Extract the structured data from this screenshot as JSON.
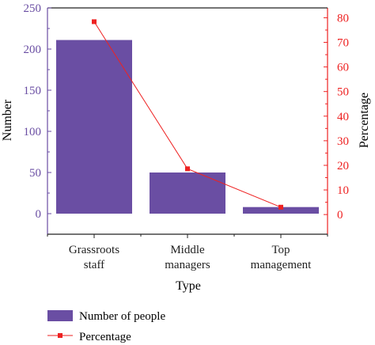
{
  "colors": {
    "bar": "#6a4ea3",
    "line": "#ee2222",
    "axis_left": "#6a4ea3",
    "axis_right": "#ee2222",
    "text": "#222222"
  },
  "chart_data": {
    "type": "bar",
    "categories": [
      [
        "Grassroots",
        "staff"
      ],
      [
        "Middle",
        "managers"
      ],
      [
        "Top",
        "management"
      ]
    ],
    "series": [
      {
        "name": "Number of people",
        "type": "bar",
        "axis": "left",
        "values": [
          211,
          50,
          8
        ]
      },
      {
        "name": "Percentage",
        "type": "line",
        "axis": "right",
        "values": [
          78.4,
          18.6,
          3.0
        ]
      }
    ],
    "xlabel": "Type",
    "ylabel": "Number",
    "ylabel_right": "Percentage",
    "ylim": [
      -25,
      250
    ],
    "ylim_right": [
      -8,
      84
    ],
    "yticks": [
      0,
      50,
      100,
      150,
      200,
      250
    ],
    "yticks_right": [
      0,
      10,
      20,
      30,
      40,
      50,
      60,
      70,
      80
    ],
    "legend_position": "bottom-left"
  }
}
